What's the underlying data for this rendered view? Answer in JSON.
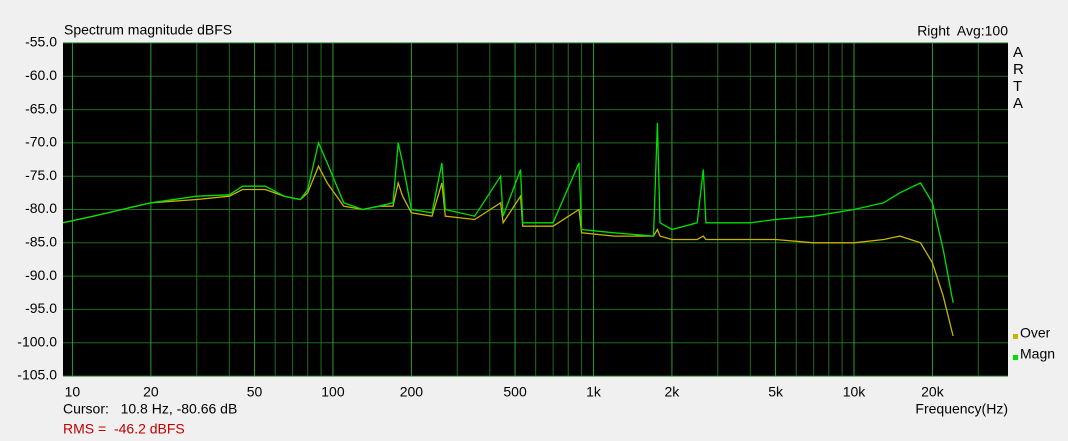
{
  "chart_data": {
    "type": "line",
    "title": "Spectrum magnitude dBFS",
    "channel": "Right  Avg:100",
    "logo": "ARTA",
    "x_label": "Frequency(Hz)",
    "cursor": "Cursor:   10.8 Hz, -80.66 dB",
    "rms": "RMS =  -46.2 dBFS",
    "xscale": "log",
    "xlim": [
      9.2,
      39000
    ],
    "ylim": [
      -105,
      -55
    ],
    "xticks": [
      10,
      20,
      50,
      100,
      200,
      500,
      {
        "value": 1000,
        "label": "1k"
      },
      {
        "value": 2000,
        "label": "2k"
      },
      {
        "value": 5000,
        "label": "5k"
      },
      {
        "value": 10000,
        "label": "10k"
      },
      {
        "value": 20000,
        "label": "20k"
      }
    ],
    "xminor": [
      30,
      40,
      60,
      70,
      80,
      90,
      300,
      400,
      600,
      700,
      800,
      900,
      3000,
      4000,
      6000,
      7000,
      8000,
      9000,
      30000
    ],
    "yticks": [
      {
        "value": -55,
        "label": "-55.0"
      },
      {
        "value": -60,
        "label": "-60.0"
      },
      {
        "value": -65,
        "label": "-65.0"
      },
      {
        "value": -70,
        "label": "-70.0"
      },
      {
        "value": -75,
        "label": "-75.0"
      },
      {
        "value": -80,
        "label": "-80.0"
      },
      {
        "value": -85,
        "label": "-85.0"
      },
      {
        "value": -90,
        "label": "-90.0"
      },
      {
        "value": -95,
        "label": "-95.0"
      },
      {
        "value": -100,
        "label": "-100.0"
      },
      {
        "value": -105,
        "label": "-105.0"
      }
    ],
    "grid": true,
    "legend": "bottom-right",
    "x": [
      9.2,
      12,
      20,
      30,
      40,
      45,
      55,
      65,
      75,
      80,
      88,
      95,
      110,
      130,
      150,
      170,
      178,
      185,
      200,
      240,
      262,
      270,
      350,
      440,
      450,
      525,
      535,
      700,
      880,
      900,
      1200,
      1700,
      1760,
      1800,
      2000,
      2500,
      2640,
      2700,
      4000,
      5000,
      7000,
      10000,
      13000,
      15000,
      18000,
      20000,
      22000,
      24000
    ],
    "series": [
      {
        "name": "Over",
        "color": "#c8b400",
        "values": [
          -82,
          -81,
          -79,
          -78.5,
          -78,
          -77,
          -77,
          -78,
          -78.5,
          -77.5,
          -73.5,
          -76,
          -79.5,
          -80,
          -79.5,
          -79.5,
          -76,
          -78,
          -80.5,
          -81,
          -76,
          -81,
          -81.5,
          -79,
          -82,
          -78,
          -82.5,
          -82.5,
          -80,
          -83.5,
          -84,
          -84,
          -83,
          -84,
          -84.5,
          -84.5,
          -84,
          -84.5,
          -84.5,
          -84.5,
          -85,
          -85,
          -84.5,
          -84,
          -85,
          -88,
          -93,
          -99
        ]
      },
      {
        "name": "Magn",
        "color": "#00e000",
        "values": [
          -82,
          -81,
          -79,
          -78,
          -77.8,
          -76.5,
          -76.5,
          -78,
          -78.5,
          -77,
          -70,
          -73,
          -79,
          -80,
          -79.5,
          -79,
          -70,
          -73,
          -80,
          -80.5,
          -73,
          -80,
          -81,
          -75,
          -81,
          -74,
          -82,
          -82,
          -73,
          -83,
          -83.5,
          -84,
          -67,
          -82,
          -83,
          -82,
          -74,
          -82,
          -82,
          -81.5,
          -81,
          -80,
          -79,
          -77.5,
          -76,
          -79,
          -86,
          -94
        ]
      }
    ]
  }
}
